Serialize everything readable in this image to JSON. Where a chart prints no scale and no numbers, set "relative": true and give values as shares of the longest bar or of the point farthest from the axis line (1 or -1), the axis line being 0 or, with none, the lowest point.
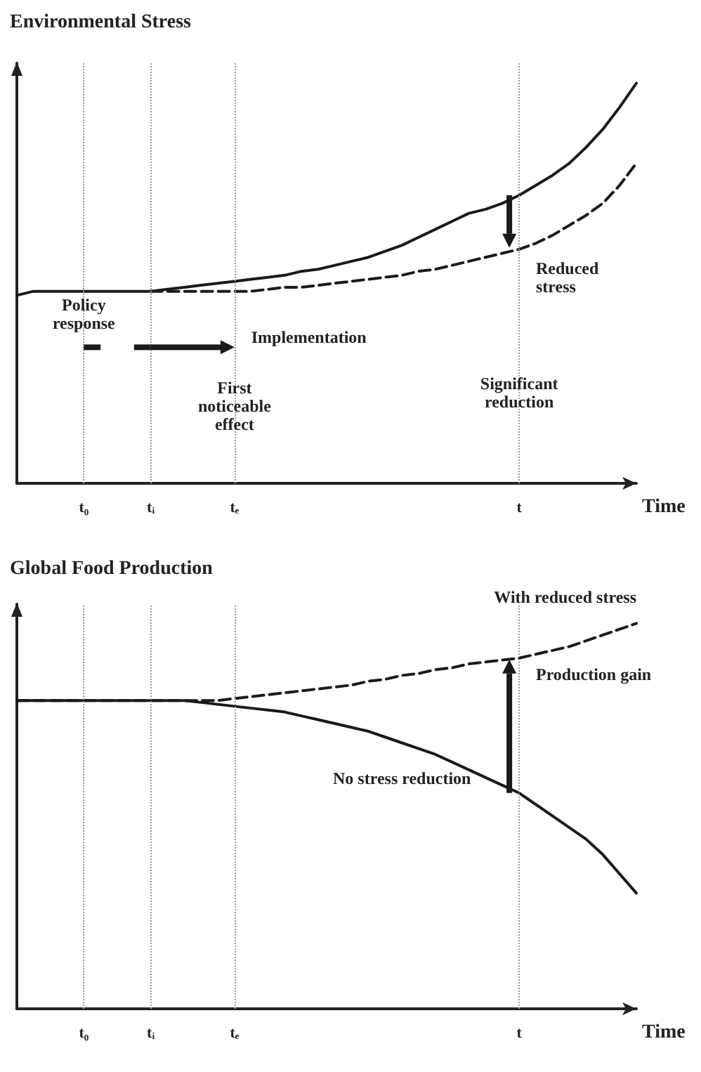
{
  "chart_data": [
    {
      "type": "line",
      "title": "Environmental Stress",
      "xlabel": "Time",
      "relative": true,
      "tick_labels": "x",
      "marker": "none",
      "categories": [
        null,
        null,
        null,
        null,
        "t₀",
        null,
        null,
        null,
        "tᵢ",
        null,
        null,
        null,
        null,
        "tₑ",
        null,
        null,
        null,
        null,
        null,
        null,
        null,
        null,
        null,
        null,
        null,
        null,
        null,
        null,
        null,
        null,
        "t",
        null,
        null,
        null,
        null,
        null,
        null,
        null
      ],
      "series": [
        {
          "color": "#1a1a1a",
          "line_style": "solid",
          "values": [
            0.47,
            0.48,
            0.48,
            0.48,
            0.48,
            0.48,
            0.48,
            0.48,
            0.48,
            0.485,
            0.49,
            0.495,
            0.5,
            0.505,
            0.51,
            0.515,
            0.52,
            0.53,
            0.535,
            0.545,
            0.555,
            0.565,
            0.58,
            0.595,
            0.615,
            0.635,
            0.655,
            0.675,
            0.685,
            0.7,
            0.72,
            0.745,
            0.77,
            0.8,
            0.84,
            0.885,
            0.94,
            1
          ]
        },
        {
          "color": "#1a1a1a",
          "line_style": "dashed",
          "values": [
            null,
            null,
            null,
            null,
            null,
            null,
            null,
            null,
            0.48,
            0.48,
            0.48,
            0.48,
            0.48,
            0.48,
            0.48,
            0.485,
            0.49,
            0.49,
            0.495,
            0.5,
            0.505,
            0.51,
            0.515,
            0.52,
            0.53,
            0.535,
            0.545,
            0.555,
            0.565,
            0.575,
            0.585,
            0.6,
            0.62,
            0.645,
            0.67,
            0.7,
            0.745,
            0.8
          ]
        }
      ],
      "ref_lines": [
        {
          "axis": "x",
          "value": "t₀",
          "color": "#999999",
          "line_style": "dotted"
        },
        {
          "axis": "x",
          "value": "tᵢ",
          "color": "#999999",
          "line_style": "dotted"
        },
        {
          "axis": "x",
          "value": "tₑ",
          "color": "#999999",
          "line_style": "dotted"
        },
        {
          "axis": "x",
          "value": "t",
          "color": "#999999",
          "line_style": "dotted"
        }
      ],
      "annotations": [
        "Reduced stress",
        "Policy response",
        "Implementation",
        "First noticeable effect",
        "Significant reduction"
      ]
    },
    {
      "type": "line",
      "title": "Global Food Production",
      "xlabel": "Time",
      "relative": true,
      "tick_labels": "x",
      "marker": "none",
      "categories": [
        null,
        null,
        null,
        null,
        "t₀",
        null,
        null,
        null,
        "tᵢ",
        null,
        null,
        null,
        null,
        "tₑ",
        null,
        null,
        null,
        null,
        null,
        null,
        null,
        null,
        null,
        null,
        null,
        null,
        null,
        null,
        null,
        null,
        "t",
        null,
        null,
        null,
        null,
        null,
        null,
        null
      ],
      "series": [
        {
          "name": "No stress reduction",
          "color": "#1a1a1a",
          "line_style": "solid",
          "values": [
            0.8,
            0.8,
            0.8,
            0.8,
            0.8,
            0.8,
            0.8,
            0.8,
            0.8,
            0.8,
            0.8,
            0.795,
            0.79,
            0.785,
            0.78,
            0.775,
            0.77,
            0.76,
            0.75,
            0.74,
            0.73,
            0.72,
            0.705,
            0.69,
            0.675,
            0.66,
            0.64,
            0.62,
            0.6,
            0.58,
            0.56,
            0.53,
            0.5,
            0.47,
            0.44,
            0.4,
            0.35,
            0.3
          ]
        },
        {
          "name": "With reduced stress",
          "color": "#1a1a1a",
          "line_style": "dashed",
          "values": [
            0.8,
            0.8,
            0.8,
            0.8,
            0.8,
            0.8,
            0.8,
            0.8,
            0.8,
            0.8,
            0.8,
            0.8,
            0.8,
            0.805,
            0.81,
            0.815,
            0.82,
            0.825,
            0.83,
            0.835,
            0.84,
            0.85,
            0.855,
            0.865,
            0.87,
            0.88,
            0.885,
            0.895,
            0.9,
            0.905,
            0.91,
            0.92,
            0.93,
            0.94,
            0.955,
            0.97,
            0.985,
            1
          ]
        }
      ],
      "ref_lines": [
        {
          "axis": "x",
          "value": "t₀",
          "color": "#999999",
          "line_style": "dotted"
        },
        {
          "axis": "x",
          "value": "tᵢ",
          "color": "#999999",
          "line_style": "dotted"
        },
        {
          "axis": "x",
          "value": "tₑ",
          "color": "#999999",
          "line_style": "dotted"
        },
        {
          "axis": "x",
          "value": "t",
          "color": "#999999",
          "line_style": "dotted"
        }
      ],
      "annotations": [
        "Production gain"
      ]
    }
  ]
}
